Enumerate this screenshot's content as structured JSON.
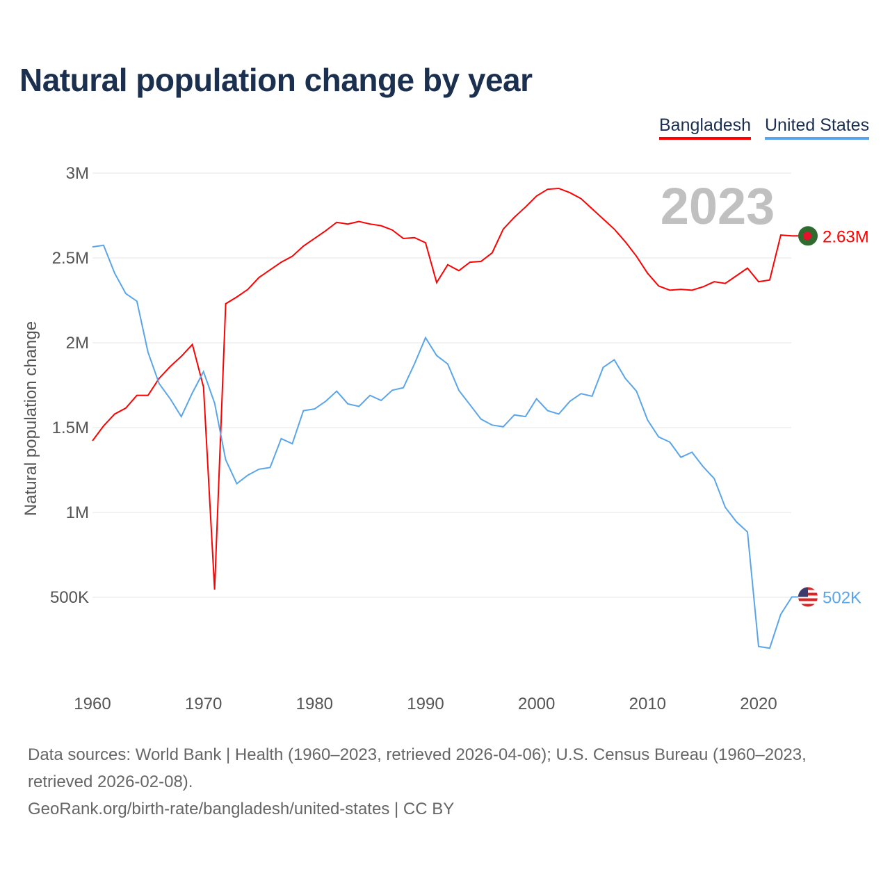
{
  "chart_data": {
    "type": "line",
    "title": "Natural population change by year",
    "xlabel": "",
    "ylabel": "Natural population change",
    "xlim": [
      1960,
      2023
    ],
    "ylim": [
      0,
      3000000
    ],
    "grid": true,
    "legend_position": "top-right",
    "x_ticks": [
      1960,
      1970,
      1980,
      1990,
      2000,
      2010,
      2020
    ],
    "x_tick_labels": [
      "1960",
      "1970",
      "1980",
      "1990",
      "2000",
      "2010",
      "2020"
    ],
    "y_ticks": [
      500000,
      1000000,
      1500000,
      2000000,
      2500000,
      3000000
    ],
    "y_tick_labels": [
      "500K",
      "1M",
      "1.5M",
      "2M",
      "2.5M",
      "3M"
    ],
    "year_label": "2023",
    "x": [
      1960,
      1961,
      1962,
      1963,
      1964,
      1965,
      1966,
      1967,
      1968,
      1969,
      1970,
      1971,
      1972,
      1973,
      1974,
      1975,
      1976,
      1977,
      1978,
      1979,
      1980,
      1981,
      1982,
      1983,
      1984,
      1985,
      1986,
      1987,
      1988,
      1989,
      1990,
      1991,
      1992,
      1993,
      1994,
      1995,
      1996,
      1997,
      1998,
      1999,
      2000,
      2001,
      2002,
      2003,
      2004,
      2005,
      2006,
      2007,
      2008,
      2009,
      2010,
      2011,
      2012,
      2013,
      2014,
      2015,
      2016,
      2017,
      2018,
      2019,
      2020,
      2021,
      2022,
      2023
    ],
    "series": [
      {
        "name": "Bangladesh",
        "color": "#ff0000",
        "end_label": "2.63M",
        "values": [
          1.422,
          1.51,
          1.58,
          1.615,
          1.69,
          1.69,
          1.79,
          1.86,
          1.92,
          1.99,
          1.74,
          0.545,
          2.23,
          2.27,
          2.315,
          2.385,
          2.43,
          2.475,
          2.51,
          2.57,
          2.615,
          2.66,
          2.71,
          2.7,
          2.715,
          2.7,
          2.69,
          2.665,
          2.615,
          2.62,
          2.59,
          2.355,
          2.46,
          2.425,
          2.475,
          2.48,
          2.53,
          2.67,
          2.74,
          2.8,
          2.865,
          2.905,
          2.91,
          2.885,
          2.85,
          2.79,
          2.73,
          2.67,
          2.595,
          2.51,
          2.41,
          2.335,
          2.31,
          2.315,
          2.31,
          2.33,
          2.36,
          2.35,
          2.395,
          2.44,
          2.36,
          2.37,
          2.635,
          2.63
        ]
      },
      {
        "name": "United States",
        "color": "#5aa5ea",
        "end_label": "502K",
        "values": [
          2.565,
          2.575,
          2.41,
          2.29,
          2.245,
          1.945,
          1.76,
          1.67,
          1.565,
          1.705,
          1.83,
          1.645,
          1.31,
          1.17,
          1.22,
          1.255,
          1.265,
          1.435,
          1.405,
          1.6,
          1.61,
          1.655,
          1.715,
          1.64,
          1.625,
          1.69,
          1.66,
          1.72,
          1.735,
          1.875,
          2.03,
          1.925,
          1.875,
          1.72,
          1.635,
          1.55,
          1.515,
          1.505,
          1.575,
          1.565,
          1.67,
          1.6,
          1.58,
          1.655,
          1.7,
          1.685,
          1.855,
          1.9,
          1.79,
          1.715,
          1.545,
          1.445,
          1.415,
          1.325,
          1.355,
          1.27,
          1.2,
          1.03,
          0.945,
          0.885,
          0.21,
          0.2,
          0.4,
          0.502
        ]
      }
    ],
    "value_unit": "millions"
  },
  "footer": {
    "line1": "Data sources: World Bank | Health (1960–2023, retrieved 2026-04-06); U.S. Census Bureau (1960–2023, retrieved 2026-02-08).",
    "line2": "GeoRank.org/birth-rate/bangladesh/united-states | CC BY"
  }
}
